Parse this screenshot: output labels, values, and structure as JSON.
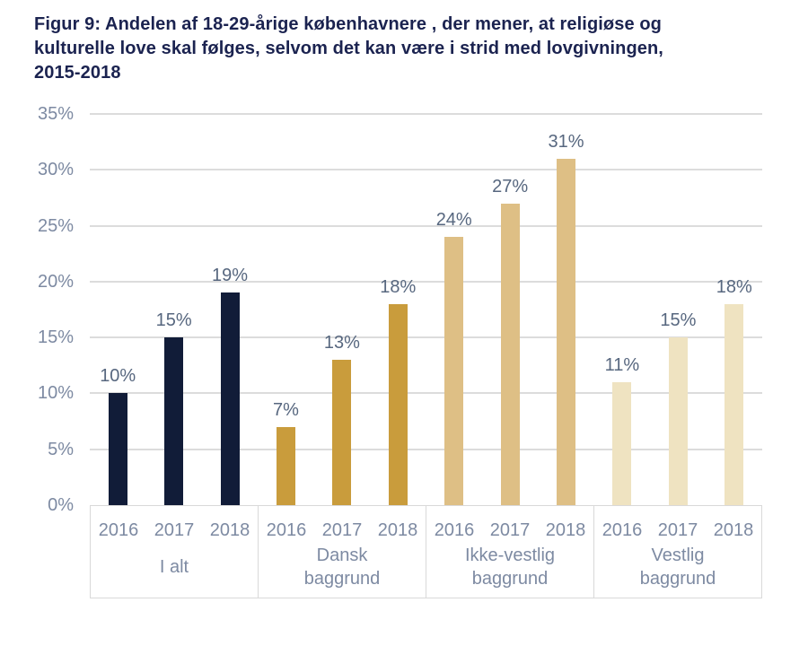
{
  "title": {
    "text": "Figur 9: Andelen af 18-29-årige københavnere , der mener, at religiøse og\nkulturelle love skal følges, selvom det kan være i strid med lovgivningen,\n2015-2018"
  },
  "palette": {
    "background": "#ffffff",
    "title_text": "#1b2350",
    "axis_text": "#7d8aa2",
    "data_label_text": "#57677f",
    "gridline": "#dcdcdc",
    "table_border": "#d9d9d9"
  },
  "chart_data": {
    "type": "bar",
    "title": "Figur 9: Andelen af 18-29-årige københavnere , der mener, at religiøse og kulturelle love skal følges, selvom det kan være i strid med lovgivningen, 2015-2018",
    "xlabel": "",
    "ylabel": "",
    "ylim": [
      0,
      35
    ],
    "yticks": [
      0,
      5,
      10,
      15,
      20,
      25,
      30,
      35
    ],
    "ytick_suffix": "%",
    "grid": true,
    "legend": "none",
    "x_years": [
      "2016",
      "2017",
      "2018"
    ],
    "data_label_suffix": "%",
    "groups": [
      {
        "label": "I alt",
        "label_lines": [
          "I alt"
        ],
        "color": "#111c38",
        "values": [
          10,
          15,
          19
        ]
      },
      {
        "label": "Dansk baggrund",
        "label_lines": [
          "Dansk",
          "baggrund"
        ],
        "color": "#c99c3c",
        "values": [
          7,
          13,
          18
        ]
      },
      {
        "label": "Ikke-vestlig baggrund",
        "label_lines": [
          "Ikke-vestlig",
          "baggrund"
        ],
        "color": "#debf85",
        "values": [
          24,
          27,
          31
        ]
      },
      {
        "label": "Vestlig baggrund",
        "label_lines": [
          "Vestlig",
          "baggrund"
        ],
        "color": "#efe3c1",
        "values": [
          11,
          15,
          18
        ]
      }
    ]
  }
}
